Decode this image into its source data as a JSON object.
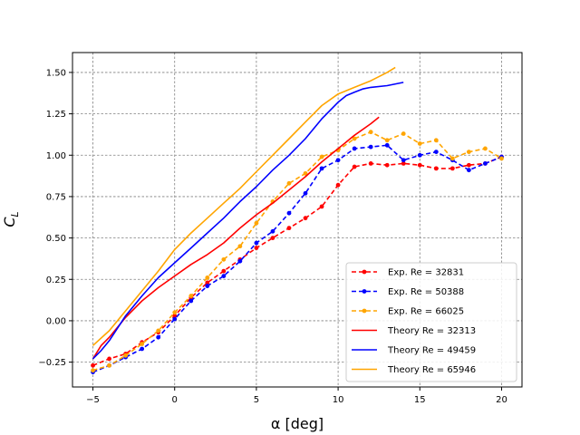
{
  "chart_data": {
    "type": "line",
    "xlabel": "α [deg]",
    "ylabel": "C_L",
    "xlim": [
      -6.25,
      21.25
    ],
    "ylim": [
      -0.4,
      1.62
    ],
    "xticks": [
      -5,
      0,
      5,
      10,
      15,
      20
    ],
    "yticks": [
      -0.25,
      0.0,
      0.25,
      0.5,
      0.75,
      1.0,
      1.25,
      1.5
    ],
    "xtick_labels": [
      "−5",
      "0",
      "5",
      "10",
      "15",
      "20"
    ],
    "ytick_labels": [
      "−0.25",
      "0.00",
      "0.25",
      "0.50",
      "0.75",
      "1.00",
      "1.25",
      "1.50"
    ],
    "grid": true,
    "legend_position": "lower-right",
    "series": [
      {
        "name": "Exp. Re = 32831",
        "color": "#ff0000",
        "style": "dashed-marker",
        "x": [
          -5,
          -4,
          -3,
          -2,
          -1,
          0,
          1,
          2,
          3,
          4,
          5,
          6,
          7,
          8,
          9,
          10,
          11,
          12,
          13,
          14,
          15,
          16,
          17,
          18,
          19,
          20
        ],
        "y": [
          -0.27,
          -0.23,
          -0.2,
          -0.13,
          -0.07,
          0.03,
          0.14,
          0.23,
          0.3,
          0.37,
          0.44,
          0.5,
          0.56,
          0.62,
          0.69,
          0.82,
          0.93,
          0.95,
          0.94,
          0.95,
          0.94,
          0.92,
          0.92,
          0.94,
          0.95,
          0.99
        ]
      },
      {
        "name": "Exp. Re = 50388",
        "color": "#0000ff",
        "style": "dashed-marker",
        "x": [
          -5,
          -4,
          -3,
          -2,
          -1,
          0,
          1,
          2,
          3,
          4,
          5,
          6,
          7,
          8,
          9,
          10,
          11,
          12,
          13,
          14,
          15,
          16,
          17,
          18,
          19,
          20
        ],
        "y": [
          -0.31,
          -0.27,
          -0.22,
          -0.17,
          -0.1,
          0.01,
          0.12,
          0.21,
          0.27,
          0.36,
          0.47,
          0.54,
          0.65,
          0.77,
          0.92,
          0.97,
          1.04,
          1.05,
          1.06,
          0.97,
          1.0,
          1.02,
          0.97,
          0.91,
          0.95,
          0.99
        ]
      },
      {
        "name": "Exp. Re = 66025",
        "color": "#ffa500",
        "style": "dashed-marker",
        "x": [
          -5,
          -4,
          -3,
          -2,
          -1,
          0,
          1,
          2,
          3,
          4,
          5,
          6,
          7,
          8,
          9,
          10,
          11,
          12,
          13,
          14,
          15,
          16,
          17,
          18,
          19,
          20
        ],
        "y": [
          -0.3,
          -0.27,
          -0.21,
          -0.14,
          -0.06,
          0.05,
          0.15,
          0.26,
          0.37,
          0.45,
          0.59,
          0.72,
          0.83,
          0.89,
          0.99,
          1.03,
          1.1,
          1.14,
          1.09,
          1.13,
          1.07,
          1.09,
          0.98,
          1.02,
          1.04,
          0.98
        ]
      },
      {
        "name": "Theory Re = 32313",
        "color": "#ff0000",
        "style": "solid",
        "x": [
          -5,
          -4.5,
          -4,
          -3,
          -2,
          -1,
          0,
          1,
          2,
          3,
          4,
          5,
          6,
          7,
          8,
          9,
          10,
          11,
          12,
          12.5
        ],
        "y": [
          -0.23,
          -0.15,
          -0.1,
          0.02,
          0.12,
          0.2,
          0.27,
          0.34,
          0.4,
          0.47,
          0.56,
          0.64,
          0.71,
          0.79,
          0.87,
          0.96,
          1.04,
          1.12,
          1.19,
          1.23
        ]
      },
      {
        "name": "Theory Re = 49459",
        "color": "#0000ff",
        "style": "solid",
        "x": [
          -5,
          -4.5,
          -4,
          -3,
          -2,
          -1,
          0,
          1,
          2,
          3,
          4,
          5,
          6,
          7,
          8,
          9,
          10,
          10.5,
          11,
          11.5,
          12,
          13,
          14
        ],
        "y": [
          -0.23,
          -0.18,
          -0.12,
          0.03,
          0.15,
          0.26,
          0.35,
          0.44,
          0.53,
          0.62,
          0.72,
          0.81,
          0.91,
          1.0,
          1.1,
          1.22,
          1.32,
          1.36,
          1.38,
          1.4,
          1.41,
          1.42,
          1.44
        ]
      },
      {
        "name": "Theory Re = 65946",
        "color": "#ffa500",
        "style": "solid",
        "x": [
          -5,
          -4,
          -3,
          -2,
          -1,
          0,
          1,
          2,
          3,
          4,
          5,
          6,
          7,
          8,
          9,
          10,
          11,
          12,
          13,
          13.5
        ],
        "y": [
          -0.15,
          -0.06,
          0.06,
          0.18,
          0.3,
          0.43,
          0.53,
          0.62,
          0.71,
          0.8,
          0.9,
          1.0,
          1.1,
          1.2,
          1.3,
          1.37,
          1.41,
          1.45,
          1.5,
          1.53
        ]
      }
    ]
  }
}
